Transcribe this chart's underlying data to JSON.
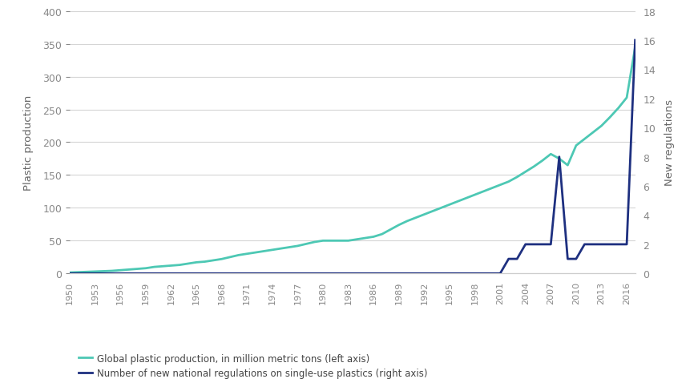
{
  "title": "",
  "ylabel_left": "Plastic production",
  "ylabel_right": "New regulations",
  "left_color": "#4DC8B4",
  "right_color": "#1E3080",
  "ylim_left": [
    0,
    400
  ],
  "ylim_right": [
    0,
    18
  ],
  "yticks_left": [
    0,
    50,
    100,
    150,
    200,
    250,
    300,
    350,
    400
  ],
  "yticks_right": [
    0,
    2,
    4,
    6,
    8,
    10,
    12,
    14,
    16,
    18
  ],
  "years": [
    1950,
    1951,
    1952,
    1953,
    1954,
    1955,
    1956,
    1957,
    1958,
    1959,
    1960,
    1961,
    1962,
    1963,
    1964,
    1965,
    1966,
    1967,
    1968,
    1969,
    1970,
    1971,
    1972,
    1973,
    1974,
    1975,
    1976,
    1977,
    1978,
    1979,
    1980,
    1981,
    1982,
    1983,
    1984,
    1985,
    1986,
    1987,
    1988,
    1989,
    1990,
    1991,
    1992,
    1993,
    1994,
    1995,
    1996,
    1997,
    1998,
    1999,
    2000,
    2001,
    2002,
    2003,
    2004,
    2005,
    2006,
    2007,
    2008,
    2009,
    2010,
    2011,
    2012,
    2013,
    2014,
    2015,
    2016,
    2017
  ],
  "plastic_production": [
    1.5,
    2,
    2.5,
    3,
    3.5,
    4,
    5,
    6,
    7,
    8,
    10,
    11,
    12,
    13,
    15,
    17,
    18,
    20,
    22,
    25,
    28,
    30,
    32,
    34,
    36,
    38,
    40,
    42,
    45,
    48,
    50,
    50,
    50,
    50,
    52,
    54,
    56,
    60,
    67,
    74,
    80,
    85,
    90,
    95,
    100,
    105,
    110,
    115,
    120,
    125,
    130,
    135,
    140,
    147,
    155,
    163,
    172,
    182,
    175,
    165,
    195,
    205,
    215,
    225,
    238,
    252,
    268,
    345
  ],
  "regulations": [
    0,
    0,
    0,
    0,
    0,
    0,
    0,
    0,
    0,
    0,
    0,
    0,
    0,
    0,
    0,
    0,
    0,
    0,
    0,
    0,
    0,
    0,
    0,
    0,
    0,
    0,
    0,
    0,
    0,
    0,
    0,
    0,
    0,
    0,
    0,
    0,
    0,
    0,
    0,
    0,
    0,
    0,
    0,
    0,
    0,
    0,
    0,
    0,
    0,
    0,
    0,
    0,
    1,
    1,
    2,
    2,
    2,
    2,
    8,
    1,
    1,
    2,
    2,
    2,
    2,
    2,
    2,
    16
  ],
  "xtick_years": [
    1950,
    1953,
    1956,
    1959,
    1962,
    1965,
    1968,
    1971,
    1974,
    1977,
    1980,
    1983,
    1986,
    1989,
    1992,
    1995,
    1998,
    2001,
    2004,
    2007,
    2010,
    2013,
    2016
  ],
  "legend_left": "Global plastic production, in million metric tons (left axis)",
  "legend_right": "Number of new national regulations on single-use plastics (right axis)",
  "bg_color": "#ffffff",
  "grid_color": "#d5d5d5"
}
